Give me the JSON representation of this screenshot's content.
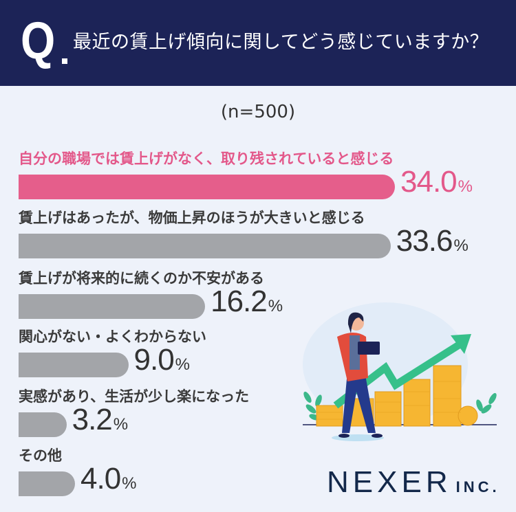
{
  "header": {
    "q_mark": "Q",
    "title": "最近の賃上げ傾向に関してどう感じていますか？"
  },
  "sample": "(n=500)",
  "colors": {
    "header": "#1c2357",
    "highlight": "#e55e8b",
    "bar": "#a3a5a9",
    "background": "#eef2fa"
  },
  "chart_data": {
    "type": "bar",
    "orientation": "horizontal",
    "unit": "%",
    "categories": [
      "自分の職場では賃上げがなく、取り残されていると感じる",
      "賃上げはあったが、物価上昇のほうが大きいと感じる",
      "賃上げが将来的に続くのか不安がある",
      "関心がない・よくわからない",
      "実感があり、生活が少し楽になった",
      "その他"
    ],
    "values": [
      34.0,
      33.6,
      16.2,
      9.0,
      3.2,
      4.0
    ],
    "value_labels": [
      "34.0",
      "33.6",
      "16.2",
      "9.0",
      "3.2",
      "4.0"
    ],
    "highlight_index": 0
  },
  "illustration": "woman-with-laptop-coins-rising-arrow",
  "logo": {
    "main": "NEXER",
    "suffix": "INC."
  }
}
